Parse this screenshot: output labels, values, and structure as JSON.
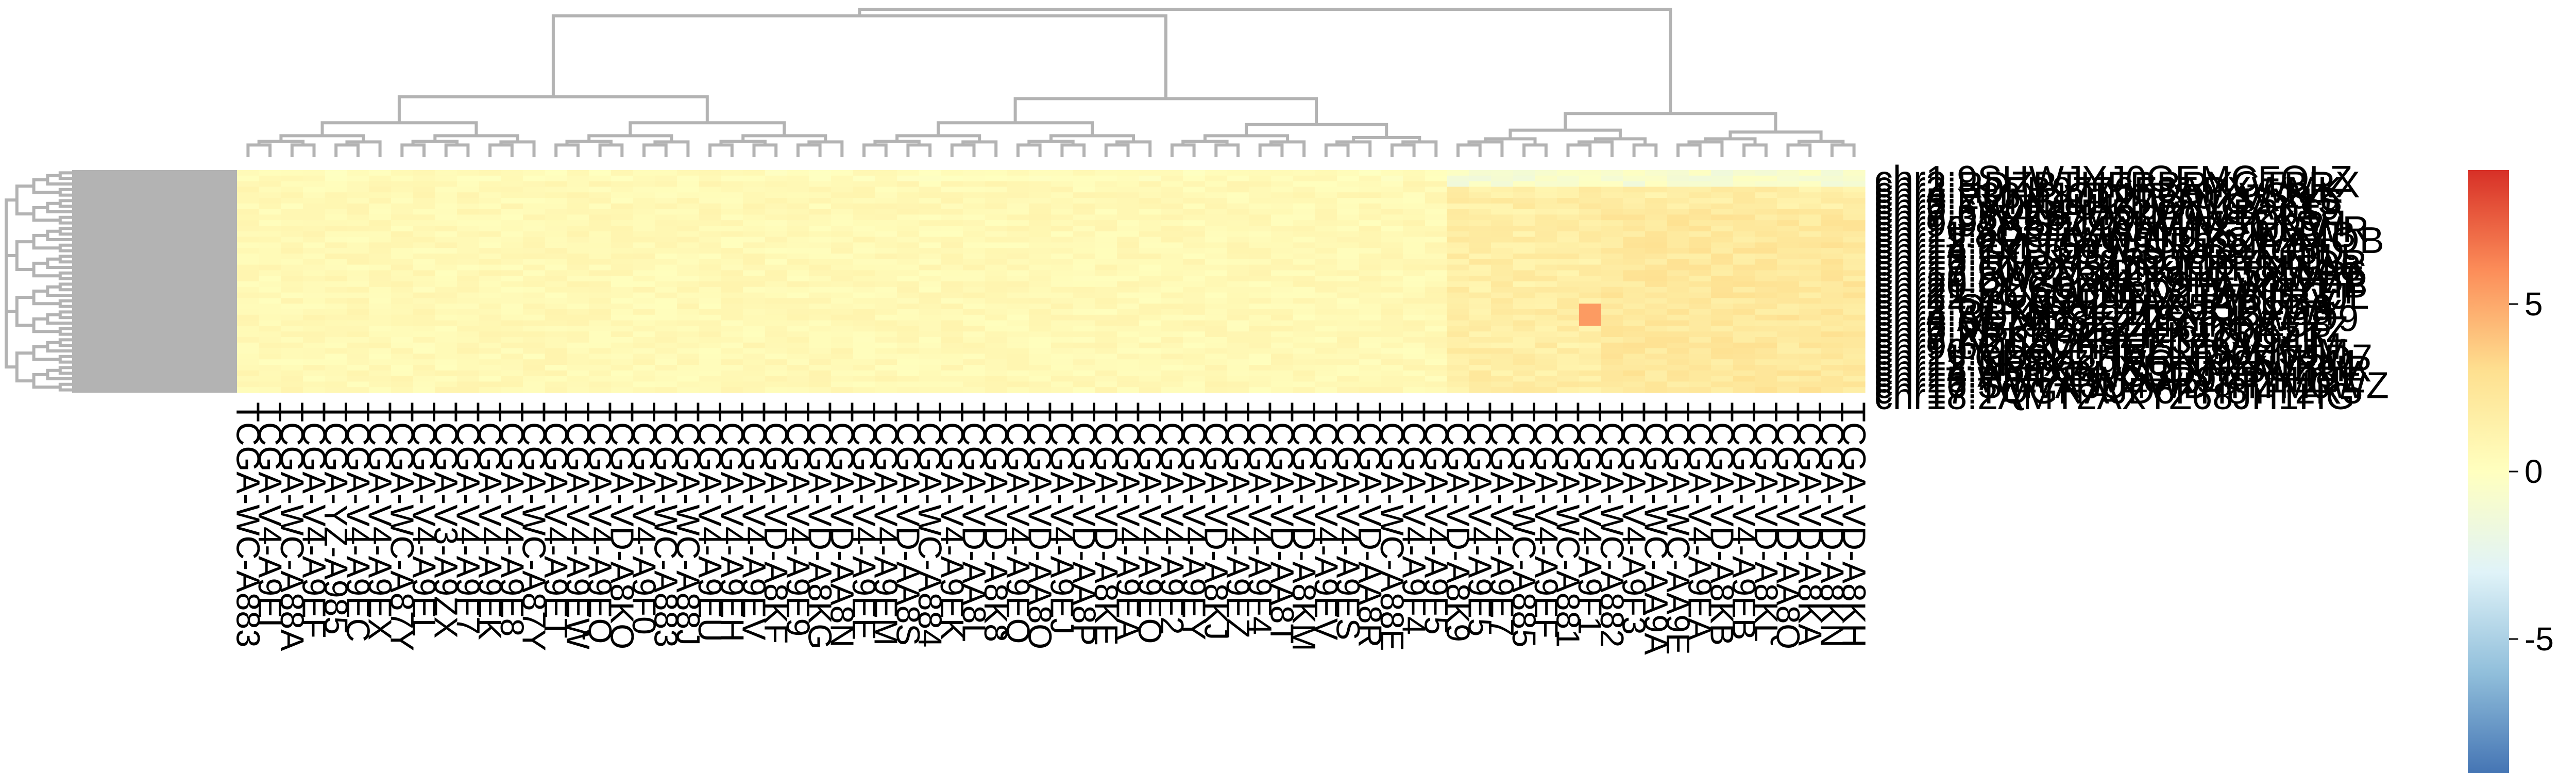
{
  "chart_data": {
    "type": "heatmap",
    "title": "",
    "xlabel": "",
    "ylabel": "",
    "n_columns": 74,
    "column_labels": [
      "TCGA-WC-A883",
      "TCGA-V4-A9EI",
      "TCGA-WC-A88A",
      "TCGA-V4-A9EF",
      "TCGA-YZ-A985",
      "TCGA-V4-A9EC",
      "TCGA-V4-A9EX",
      "TCGA-WC-A87Y",
      "TCGA-V4-A9EL",
      "TCGA-V3-A9ZX",
      "TCGA-V4-A9F7",
      "TCGA-V4-A9EK",
      "TCGA-V4-A9E8",
      "TCGA-WC-A87Y",
      "TCGA-V4-A9ET",
      "TCGA-V4-A9EW",
      "TCGA-V4-A9EQ",
      "TCGA-VD-A8KO",
      "TCGA-V4-A9F0",
      "TCGA-WC-A883",
      "TCGA-WC-A88J",
      "TCGA-V4-A9EU",
      "TCGA-V4-A9EH",
      "TCGA-V4-A9EV",
      "TCGA-VD-A8KF",
      "TCGA-V4-A9E9",
      "TCGA-VD-A8KG",
      "TCGA-VD-AA8N",
      "TCGA-V4-A9EE",
      "TCGA-V4-A9EM",
      "TCGA-VD-AA8S",
      "TCGA-WC-A884",
      "TCGA-V4-A9EK",
      "TCGA-VD-AA8L",
      "TCGA-VD-A8K8",
      "TCGA-V4-A9EQ",
      "TCGA-VD-AA8O",
      "TCGA-V4-A9EJ",
      "TCGA-VD-AA8P",
      "TCGA-VD-A8KE",
      "TCGA-V4-A9EA",
      "TCGA-V4-A9EO",
      "TCGA-V4-A9F2",
      "TCGA-V4-A9EY",
      "TCGA-VD-A8KJ",
      "TCGA-V4-A9EZ",
      "TCGA-V4-A9F4",
      "TCGA-VD-AA8T",
      "TCGA-VD-A8KM",
      "TCGA-V4-A9EV",
      "TCGA-V4-A9ES",
      "TCGA-VD-AA8R",
      "TCGA-WC-A88E",
      "TCGA-V4-A9F4",
      "TCGA-V4-A9F5",
      "TCGA-VD-A8K9",
      "TCGA-V4-A9E5",
      "TCGA-V4-A9E7",
      "TCGA-WC-A885",
      "TCGA-V4-A9EF",
      "TCGA-WC-A881",
      "TCGA-V4-A9F1",
      "TCGA-WC-A882",
      "TCGA-V4-A9F3",
      "TCGA-WC-AA9A",
      "TCGA-WC-AA9E",
      "TCGA-V4-A9EA",
      "TCGA-VD-A8KB",
      "TCGA-V4-A9EB",
      "TCGA-VD-A8KL",
      "TCGA-VD-AA8Q",
      "TCGA-VD-A8KA",
      "TCGA-VD-A8KN",
      "TCGA-VD-A8KH"
    ],
    "n_rows": 40,
    "row_label_prefix": "chr",
    "legend": {
      "position": "right",
      "ticks": [
        5,
        0,
        -5
      ],
      "range": [
        -9,
        9
      ],
      "colors": [
        "#4575B4",
        "#91BFDB",
        "#E0F3F8",
        "#FFFFBF",
        "#FEE090",
        "#FC8D59",
        "#D73027"
      ]
    },
    "color_summary": {
      "left_block_columns": [
        0,
        54
      ],
      "left_block_typical_value": 0.6,
      "right_block_columns": [
        55,
        73
      ],
      "right_block_typical_value": 1.6,
      "right_block_top_rows_value": -0.8,
      "hotspot": {
        "column": 61,
        "rows": [
          24,
          27
        ],
        "value": 5.5
      }
    },
    "dendrogram_color": "#B3B3B3",
    "row_dendrogram_fill": "#B3B3B3"
  }
}
